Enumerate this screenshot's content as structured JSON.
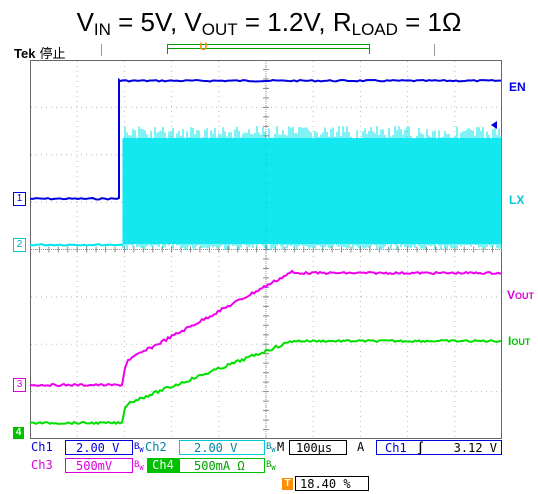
{
  "title": {
    "v": "V",
    "v_sub": "IN",
    "v_val": " = 5V, ",
    "o": "V",
    "o_sub": "OUT",
    "o_val": " = 1.2V, ",
    "r": "R",
    "r_sub": "LOAD",
    "r_val": " = 1Ω"
  },
  "scope": {
    "brand": "Tek",
    "status": "停止",
    "trigger_marker": "T",
    "record_marker": "U"
  },
  "channels": {
    "en_label": "EN",
    "lx_label": "LX",
    "vout_label": "V",
    "vout_sub": "OUT",
    "iout_label": "I",
    "iout_sub": "OUT",
    "ch1_marker": "1",
    "ch2_marker": "2",
    "ch3_marker": "3",
    "ch4_marker": "4"
  },
  "colors": {
    "ch1": "#0000e0",
    "ch2": "#00e5ee",
    "ch3": "#ee00ee",
    "ch4": "#00e000",
    "trigger": "#ff8c00",
    "grid": "#bbbbbb"
  },
  "readout": {
    "ch1_name": "Ch1",
    "ch1_scale": "2.00 V",
    "ch2_name": "Ch2",
    "ch2_scale": "2.00 V",
    "ch3_name": "Ch3",
    "ch3_scale": "500mV",
    "ch4_name": "Ch4",
    "ch4_scale": "500mA Ω",
    "bw_mark": "B",
    "bw_sub": "W",
    "time_label": "M",
    "time_scale": "100µs",
    "trig_mode": "A",
    "trig_src": "Ch1",
    "trig_slope": "∫",
    "trig_level": "3.12 V",
    "trig_pos_marker": "T",
    "trig_pos": "18.40 %"
  }
}
